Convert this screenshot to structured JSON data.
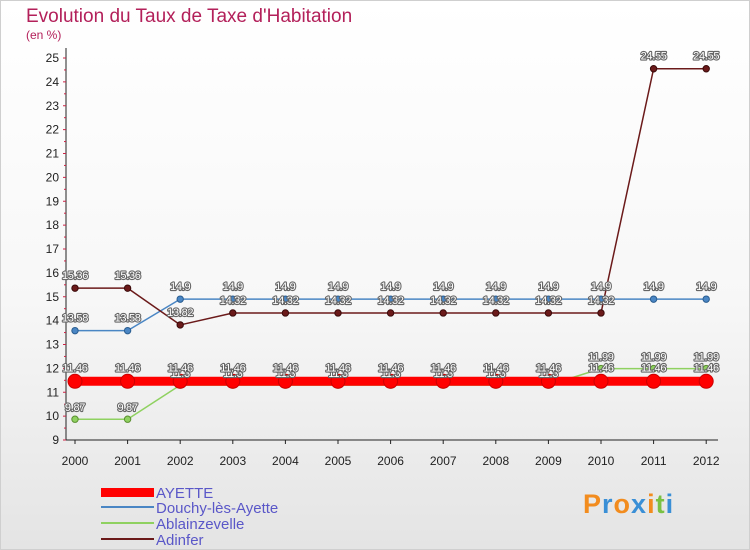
{
  "header": {
    "title": "Evolution du Taux de Taxe d'Habitation",
    "subtitle": "(en %)"
  },
  "logo": {
    "text": "Proxiti"
  },
  "colors": {
    "AYETTE": "#ff0000",
    "Douchy-lès-Ayette": "#4a86c4",
    "Ablainzevelle": "#8fd160",
    "Adinfer": "#6b1a1a",
    "axis": "#222222",
    "title": "#b3205a"
  },
  "chart_data": {
    "type": "line",
    "title": "Evolution du Taux de Taxe d'Habitation",
    "subtitle": "(en %)",
    "xlabel": "",
    "ylabel": "",
    "ylim": [
      9,
      25
    ],
    "yticks": [
      "9",
      "10",
      "11",
      "12",
      "13",
      "14",
      "15",
      "16",
      "17",
      "18",
      "19",
      "20",
      "21",
      "22",
      "23",
      "24",
      "25"
    ],
    "grid": false,
    "legend_position": "bottom-left",
    "x": [
      "2000",
      "2001",
      "2002",
      "2003",
      "2004",
      "2005",
      "2006",
      "2007",
      "2008",
      "2009",
      "2010",
      "2011",
      "2012"
    ],
    "series": [
      {
        "name": "AYETTE",
        "values": [
          11.46,
          11.46,
          11.46,
          11.46,
          11.46,
          11.46,
          11.46,
          11.46,
          11.46,
          11.46,
          11.46,
          11.46,
          11.46
        ],
        "labels": [
          "11.46",
          "11.46",
          "11.46",
          "11.46",
          "11.46",
          "11.46",
          "11.46",
          "11.46",
          "11.46",
          "11.46",
          "11.46",
          "11.46",
          "11.46"
        ]
      },
      {
        "name": "Douchy-lès-Ayette",
        "values": [
          13.58,
          13.58,
          14.9,
          14.9,
          14.9,
          14.9,
          14.9,
          14.9,
          14.9,
          14.9,
          14.9,
          14.9,
          14.9
        ],
        "labels": [
          "13.58",
          "13.58",
          "14.9",
          "14.9",
          "14.9",
          "14.9",
          "14.9",
          "14.9",
          "14.9",
          "14.9",
          "14.9",
          "14.9",
          "14.9"
        ]
      },
      {
        "name": "Ablainzevelle",
        "values": [
          9.87,
          9.87,
          11.3,
          11.3,
          11.3,
          11.3,
          11.3,
          11.3,
          11.3,
          11.3,
          11.99,
          11.99,
          11.99
        ],
        "labels": [
          "9.87",
          "9.87",
          "11.3",
          "11.3",
          "11.3",
          "11.3",
          "11.3",
          "11.3",
          "11.3",
          "11.3",
          "11.99",
          "11.99",
          "11.99"
        ]
      },
      {
        "name": "Adinfer",
        "values": [
          15.36,
          15.36,
          13.82,
          14.32,
          14.32,
          14.32,
          14.32,
          14.32,
          14.32,
          14.32,
          14.32,
          24.55,
          24.55
        ],
        "labels": [
          "15.36",
          "15.36",
          "13.82",
          "14.32",
          "14.32",
          "14.32",
          "14.32",
          "14.32",
          "14.32",
          "14.32",
          "14.32",
          "24.55",
          "24.55"
        ]
      }
    ]
  }
}
